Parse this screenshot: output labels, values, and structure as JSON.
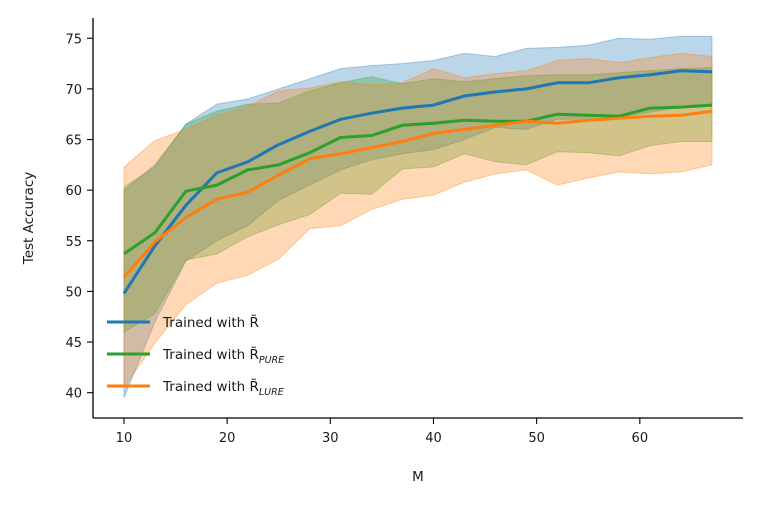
{
  "chart_data": {
    "type": "line",
    "xlabel": "M",
    "ylabel": "Test Accuracy",
    "xlim": [
      7,
      70
    ],
    "ylim": [
      37.5,
      77
    ],
    "xticks": [
      10,
      20,
      30,
      40,
      50,
      60
    ],
    "yticks": [
      40,
      45,
      50,
      55,
      60,
      65,
      70,
      75
    ],
    "legend_position": "lower-left",
    "x": [
      10,
      13,
      16,
      19,
      22,
      25,
      28,
      31,
      34,
      37,
      40,
      43,
      46,
      49,
      52,
      55,
      58,
      61,
      64,
      67
    ],
    "series": [
      {
        "name": "Trained with R̃",
        "legend_main": "Trained with R̃",
        "legend_sub": "",
        "color": "#1f77b4",
        "values": [
          49.8,
          54.5,
          58.5,
          61.7,
          62.8,
          64.5,
          65.8,
          67.0,
          67.6,
          68.1,
          68.4,
          69.3,
          69.7,
          70.0,
          70.6,
          70.6,
          71.1,
          71.4,
          71.8,
          71.7
        ],
        "upper": [
          60.0,
          62.5,
          66.5,
          68.5,
          69.0,
          70.0,
          71.0,
          72.0,
          72.3,
          72.5,
          72.8,
          73.5,
          73.2,
          74.0,
          74.1,
          74.3,
          75.0,
          74.9,
          75.2,
          75.2
        ],
        "lower": [
          39.5,
          47.0,
          53.0,
          55.0,
          56.5,
          59.0,
          60.5,
          62.0,
          63.0,
          63.6,
          64.0,
          65.0,
          66.2,
          66.0,
          67.0,
          67.0,
          67.2,
          67.7,
          68.2,
          68.3
        ]
      },
      {
        "name": "Trained with R̃_PURE",
        "legend_main": "Trained with R̃",
        "legend_sub": "PURE",
        "color": "#2ca02c",
        "values": [
          53.7,
          55.8,
          59.9,
          60.5,
          62.0,
          62.5,
          63.7,
          65.2,
          65.4,
          66.4,
          66.6,
          66.9,
          66.8,
          66.8,
          67.5,
          67.4,
          67.3,
          68.1,
          68.2,
          68.4
        ],
        "upper": [
          60.3,
          62.3,
          66.5,
          67.8,
          68.5,
          68.6,
          69.8,
          70.6,
          71.2,
          70.5,
          71.0,
          70.7,
          71.0,
          71.3,
          71.4,
          71.4,
          71.6,
          71.8,
          72.0,
          72.1
        ],
        "lower": [
          46.0,
          47.8,
          53.1,
          53.7,
          55.4,
          56.6,
          57.6,
          59.7,
          59.6,
          62.1,
          62.3,
          63.6,
          62.8,
          62.5,
          63.8,
          63.7,
          63.4,
          64.4,
          64.8,
          64.8
        ]
      },
      {
        "name": "Trained with R̃_LURE",
        "legend_main": "Trained with R̃",
        "legend_sub": "LURE",
        "color": "#ff7f0e",
        "values": [
          51.4,
          54.9,
          57.3,
          59.1,
          59.8,
          61.5,
          63.1,
          63.6,
          64.2,
          64.8,
          65.6,
          66.0,
          66.4,
          66.8,
          66.6,
          66.9,
          67.1,
          67.3,
          67.4,
          67.8
        ],
        "upper": [
          62.3,
          64.9,
          66.0,
          67.4,
          68.3,
          69.8,
          70.1,
          70.7,
          70.4,
          70.6,
          72.0,
          71.1,
          71.5,
          71.8,
          72.8,
          73.0,
          72.6,
          73.1,
          73.5,
          73.2
        ],
        "lower": [
          40.5,
          44.9,
          48.7,
          50.8,
          51.6,
          53.2,
          56.2,
          56.5,
          58.1,
          59.1,
          59.5,
          60.8,
          61.6,
          62.0,
          60.5,
          61.2,
          61.8,
          61.6,
          61.8,
          62.5
        ]
      }
    ]
  }
}
